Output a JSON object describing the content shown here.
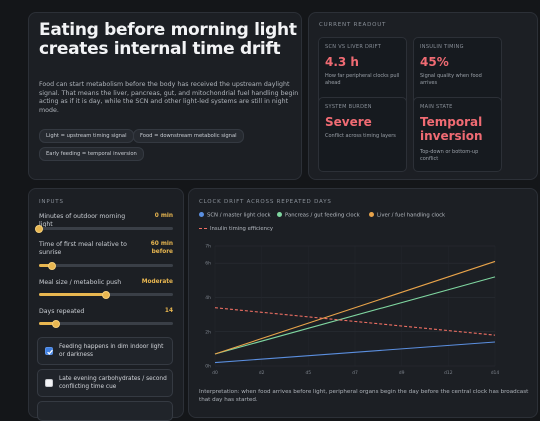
{
  "hero": {
    "title": "Eating before morning light creates internal time drift",
    "description": "Food can start metabolism before the body has received the upstream daylight signal. That means the liver, pancreas, gut, and mitochondrial fuel handling begin acting as if it is day, while the SCN and other light-led systems are still in night mode.",
    "pills": [
      "Light = upstream timing signal",
      "Food = downstream metabolic signal",
      "Early feeding = temporal inversion"
    ]
  },
  "readout": {
    "title": "CURRENT READOUT",
    "cards": [
      {
        "label": "SCN VS LIVER DRIFT",
        "value": "4.3 h",
        "desc": "How far peripheral clocks pull ahead"
      },
      {
        "label": "INSULIN TIMING",
        "value": "45%",
        "desc": "Signal quality when food arrives"
      },
      {
        "label": "SYSTEM BURDEN",
        "value": "Severe",
        "desc": "Conflict across timing layers"
      },
      {
        "label": "MAIN STATE",
        "value": "Temporal inversion",
        "desc": "Top-down or bottom-up conflict"
      }
    ],
    "value_color": "#f06b73"
  },
  "inputs": {
    "title": "INPUTS",
    "sliders": [
      {
        "label": "Minutes of outdoor morning light",
        "value": "0 min",
        "level": 0.0
      },
      {
        "label": "Time of first meal relative to sunrise",
        "value": "60 min before",
        "level": 0.1
      },
      {
        "label": "Meal size / metabolic push",
        "value": "Moderate",
        "level": 0.5
      },
      {
        "label": "Days repeated",
        "value": "14",
        "level": 0.13
      }
    ],
    "checkboxes": [
      {
        "label": "Feeding happens in dim indoor light or darkness",
        "checked": true
      },
      {
        "label": "Late evening carbohydrates / second conflicting time cue",
        "checked": false
      }
    ],
    "accent": "#e8b650"
  },
  "chart_data": {
    "type": "line",
    "title": "CLOCK DRIFT ACROSS REPEATED DAYS",
    "x": [
      0,
      14
    ],
    "x_ticks": [
      "d0",
      "d2",
      "d5",
      "d7",
      "d9",
      "d12",
      "d14"
    ],
    "y_ticks": [
      "0h",
      "2h",
      "4h",
      "6h",
      "7h"
    ],
    "ylim": [
      0,
      7
    ],
    "series": [
      {
        "name": "SCN / master light clock",
        "color": "#5b8fe0",
        "style": "solid",
        "values": [
          0.2,
          1.4
        ]
      },
      {
        "name": "Pancreas / gut feeding clock",
        "color": "#7fd6a0",
        "style": "solid",
        "values": [
          0.7,
          5.2
        ]
      },
      {
        "name": "Liver / fuel handling clock",
        "color": "#e8a34a",
        "style": "solid",
        "values": [
          0.7,
          6.1
        ]
      },
      {
        "name": "Insulin timing efficiency",
        "color": "#ef6f63",
        "style": "dashed",
        "values": [
          3.4,
          1.8
        ]
      }
    ],
    "interpretation": "Interpretation: when food arrives before light, peripheral organs begin the day before the central clock has broadcast that day has started."
  }
}
